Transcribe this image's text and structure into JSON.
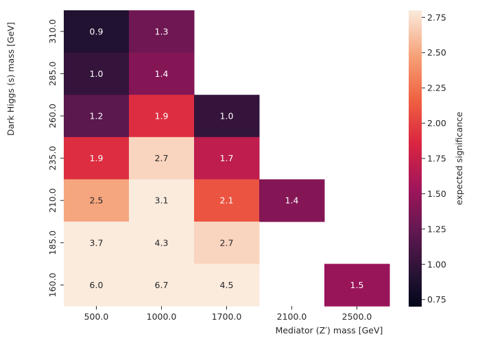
{
  "chart_data": {
    "type": "heatmap",
    "title": "",
    "xlabel": "Mediator (Z′) mass [GeV]",
    "ylabel": "Dark Higgs (s) mass [GeV]",
    "x_categories": [
      "500.0",
      "1000.0",
      "1700.0",
      "2100.0",
      "2500.0"
    ],
    "y_categories": [
      "310.0",
      "285.0",
      "260.0",
      "235.0",
      "210.0",
      "185.0",
      "160.0"
    ],
    "values": [
      [
        0.9,
        1.3,
        null,
        null,
        null
      ],
      [
        1.0,
        1.4,
        null,
        null,
        null
      ],
      [
        1.2,
        1.9,
        1.0,
        null,
        null
      ],
      [
        1.9,
        2.7,
        1.7,
        null,
        null
      ],
      [
        2.5,
        3.1,
        2.1,
        1.4,
        null
      ],
      [
        3.7,
        4.3,
        2.7,
        null,
        null
      ],
      [
        6.0,
        6.7,
        4.5,
        null,
        1.5
      ]
    ],
    "colorbar": {
      "label": "expected significance",
      "min": 0.7,
      "max": 2.8,
      "ticks": [
        "0.75",
        "1.00",
        "1.25",
        "1.50",
        "1.75",
        "2.00",
        "2.25",
        "2.50",
        "2.75"
      ],
      "colormap": "rocket",
      "placement": "right"
    },
    "grid": false
  }
}
